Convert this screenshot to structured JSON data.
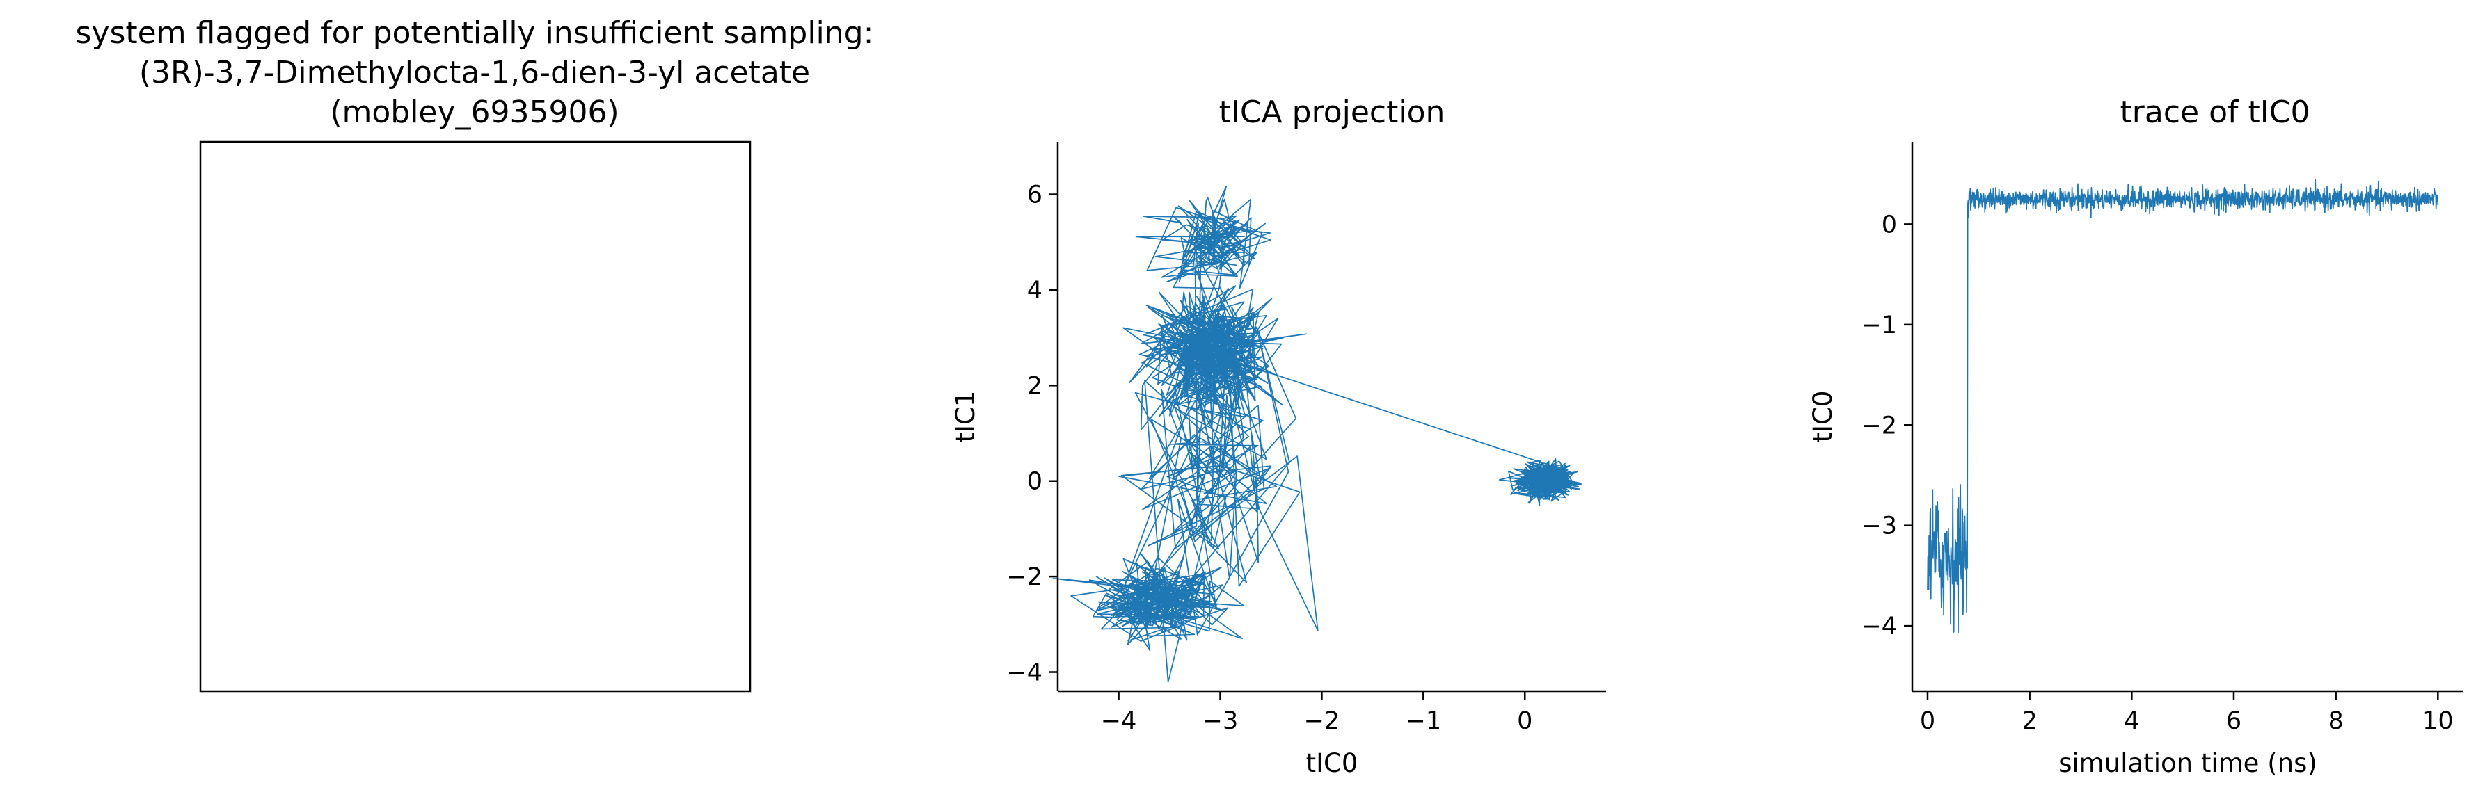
{
  "colors": {
    "series": "#1f77b4",
    "axis": "#000000",
    "background": "#ffffff"
  },
  "panel_left": {
    "title_lines": [
      "system flagged for potentially insufficient sampling:",
      "(3R)-3,7-Dimethylocta-1,6-dien-3-yl acetate",
      "(mobley_6935906)"
    ]
  },
  "chart_data": [
    {
      "type": "line",
      "title": "tICA projection",
      "xlabel": "tIC0",
      "ylabel": "tIC1",
      "xlim": [
        -4.6,
        0.8
      ],
      "ylim": [
        -4.4,
        7.1
      ],
      "xticks": [
        -4,
        -3,
        -2,
        -1,
        0
      ],
      "xtick_labels": [
        "−4",
        "−3",
        "−2",
        "−1",
        "0"
      ],
      "yticks": [
        -4,
        -2,
        0,
        2,
        4,
        6
      ],
      "ytick_labels": [
        "−4",
        "−2",
        "0",
        "2",
        "4",
        "6"
      ],
      "series": [
        {
          "clusters": [
            {
              "cx": -3.6,
              "cy": -2.5,
              "sx": 0.3,
              "sy": 0.4,
              "n": 260
            },
            {
              "cx": -3.05,
              "cy": 0.2,
              "sx": 0.45,
              "sy": 1.3,
              "n": 110
            },
            {
              "cx": -3.1,
              "cy": 2.6,
              "sx": 0.3,
              "sy": 0.6,
              "n": 280
            },
            {
              "cx": -3.1,
              "cy": 5.0,
              "sx": 0.25,
              "sy": 0.5,
              "n": 130
            },
            {
              "cx": -3.1,
              "cy": 2.8,
              "sx": 0.3,
              "sy": 0.6,
              "n": 100
            },
            {
              "cx": 0.2,
              "cy": 0.0,
              "sx": 0.12,
              "sy": 0.16,
              "n": 700
            }
          ]
        }
      ]
    },
    {
      "type": "line",
      "title": "trace of tIC0",
      "xlabel": "simulation time (ns)",
      "ylabel": "tIC0",
      "xlim": [
        -0.3,
        10.5
      ],
      "ylim": [
        -4.65,
        0.82
      ],
      "xticks": [
        0,
        2,
        4,
        6,
        8,
        10
      ],
      "xtick_labels": [
        "0",
        "2",
        "4",
        "6",
        "8",
        "10"
      ],
      "yticks": [
        -4,
        -3,
        -2,
        -1,
        0
      ],
      "ytick_labels": [
        "−4",
        "−3",
        "−2",
        "−1",
        "0"
      ],
      "series": [
        {
          "segments": [
            {
              "t_start": 0.0,
              "t_end": 0.78,
              "mean": -3.3,
              "noise": 0.45
            },
            {
              "t_start": 0.78,
              "t_end": 10.0,
              "mean": 0.25,
              "noise": 0.09
            }
          ],
          "n_points": 1400
        }
      ]
    }
  ]
}
